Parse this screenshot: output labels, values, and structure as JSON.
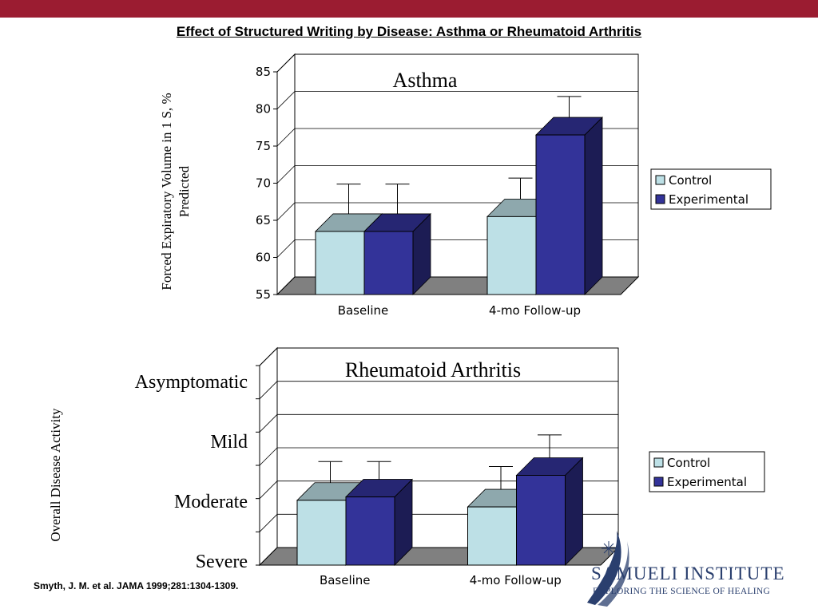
{
  "colors": {
    "banner": "#9b1c31",
    "control": "#bde0e6",
    "experimental": "#333399",
    "floor": "#808080"
  },
  "slide": {
    "title": "Effect of Structured Writing by Disease: Asthma or Rheumatoid Arthritis",
    "citation": "Smyth, J. M. et al. JAMA 1999;281:1304-1309."
  },
  "logo": {
    "name": "SAMUELI INSTITUTE",
    "tagline": "EXPLORING THE SCIENCE OF HEALING"
  },
  "chart_data": [
    {
      "type": "bar",
      "title": "Asthma",
      "ylabel": "Forced Expiratory Volume in 1 S, % Predicted",
      "categories": [
        "Baseline",
        "4-mo Follow-up"
      ],
      "ylim": [
        55,
        85
      ],
      "yticks": [
        "55",
        "60",
        "65",
        "70",
        "75",
        "80",
        "85"
      ],
      "series": [
        {
          "name": "Control",
          "values": [
            63.5,
            65.5
          ],
          "error": [
            5.2,
            4.0
          ]
        },
        {
          "name": "Experimental",
          "values": [
            63.5,
            76.5
          ],
          "error": [
            5.2,
            4.0
          ]
        }
      ],
      "legend": "right"
    },
    {
      "type": "bar",
      "title": "Rheumatoid Arthritis",
      "ylabel": "Overall Disease Activity",
      "categories": [
        "Baseline",
        "4-mo Follow-up"
      ],
      "ylim": [
        0,
        6
      ],
      "ytick_labels": [
        "Severe",
        "Moderate",
        "Mild",
        "Asymptomatic"
      ],
      "series": [
        {
          "name": "Control",
          "values": [
            1.95,
            1.75
          ],
          "error": [
            0.9,
            0.95
          ]
        },
        {
          "name": "Experimental",
          "values": [
            2.05,
            2.7
          ],
          "error": [
            0.8,
            0.95
          ]
        }
      ],
      "legend": "right"
    }
  ]
}
